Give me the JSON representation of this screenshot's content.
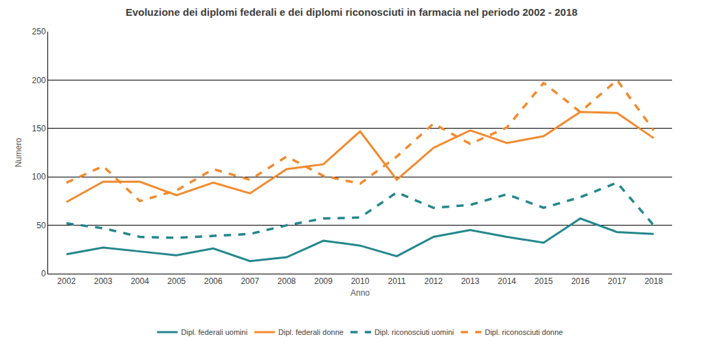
{
  "chart_data": {
    "type": "line",
    "title": "Evoluzione dei diplomi federali e dei diplomi riconosciuti in farmacia nel periodo 2002 - 2018",
    "x_label": "Anno",
    "y_label": "Numero",
    "categories": [
      "2002",
      "2003",
      "2004",
      "2005",
      "2006",
      "2007",
      "2008",
      "2009",
      "2010",
      "2011",
      "2012",
      "2013",
      "2014",
      "2015",
      "2016",
      "2017",
      "2018"
    ],
    "series": [
      {
        "name": "Dipl. federali uomini",
        "color": "#23878c",
        "line_style": "solid",
        "values": [
          20,
          27,
          23,
          19,
          26,
          13,
          17,
          34,
          29,
          18,
          38,
          45,
          38,
          32,
          57,
          43,
          41
        ]
      },
      {
        "name": "Dipl. federali donne",
        "color": "#f28a2e",
        "line_style": "solid",
        "values": [
          74,
          95,
          95,
          81,
          94,
          83,
          108,
          113,
          147,
          97,
          130,
          148,
          135,
          142,
          167,
          166,
          140
        ]
      },
      {
        "name": "Dipl. riconosciuti uomini",
        "color": "#23878c",
        "line_style": "dashed",
        "values": [
          52,
          47,
          38,
          37,
          39,
          41,
          50,
          57,
          58,
          84,
          68,
          71,
          82,
          68,
          79,
          94,
          50
        ]
      },
      {
        "name": "Dipl. riconosciuti donne",
        "color": "#f28a2e",
        "line_style": "dashed",
        "values": [
          94,
          111,
          75,
          86,
          108,
          97,
          121,
          101,
          93,
          121,
          155,
          134,
          151,
          197,
          167,
          200,
          148
        ]
      }
    ],
    "ylim": [
      0,
      250
    ],
    "yticks": [
      0,
      50,
      100,
      150,
      200,
      250
    ],
    "grid": true,
    "legend": "bottom"
  }
}
